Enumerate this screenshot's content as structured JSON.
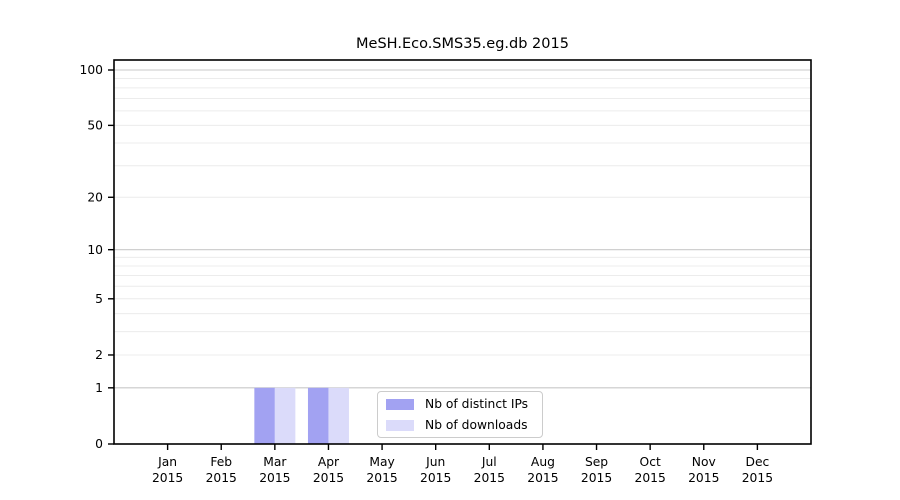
{
  "chart_data": {
    "type": "bar",
    "title": "MeSH.Eco.SMS35.eg.db 2015",
    "categories": [
      "Jan",
      "Feb",
      "Mar",
      "Apr",
      "May",
      "Jun",
      "Jul",
      "Aug",
      "Sep",
      "Oct",
      "Nov",
      "Dec"
    ],
    "category_year": "2015",
    "series": [
      {
        "name": "Nb of distinct IPs",
        "color": "#a2a2f2",
        "values": [
          0,
          0,
          1,
          1,
          0,
          0,
          0,
          0,
          0,
          0,
          0,
          0
        ]
      },
      {
        "name": "Nb of downloads",
        "color": "#dbdbfa",
        "values": [
          0,
          0,
          1,
          1,
          0,
          0,
          0,
          0,
          0,
          0,
          0,
          0
        ]
      }
    ],
    "xlabel": "",
    "ylabel": "",
    "y_scale": "log10(1+x)",
    "y_ticks": [
      0,
      1,
      2,
      5,
      10,
      20,
      50,
      100
    ],
    "y_major_gridlines": [
      1,
      10,
      100
    ],
    "y_minor_gridlines": [
      2,
      3,
      4,
      5,
      6,
      7,
      8,
      9,
      20,
      30,
      40,
      50,
      60,
      70,
      80,
      90
    ],
    "ylim": [
      0,
      113
    ],
    "grid": true,
    "legend_position": "lower center"
  },
  "colors": {
    "background": "#ffffff",
    "axis": "#000000",
    "tick_label": "#000000",
    "major_grid": "#c9c9c9",
    "minor_grid": "#ececec",
    "legend_border": "#cccccc"
  }
}
